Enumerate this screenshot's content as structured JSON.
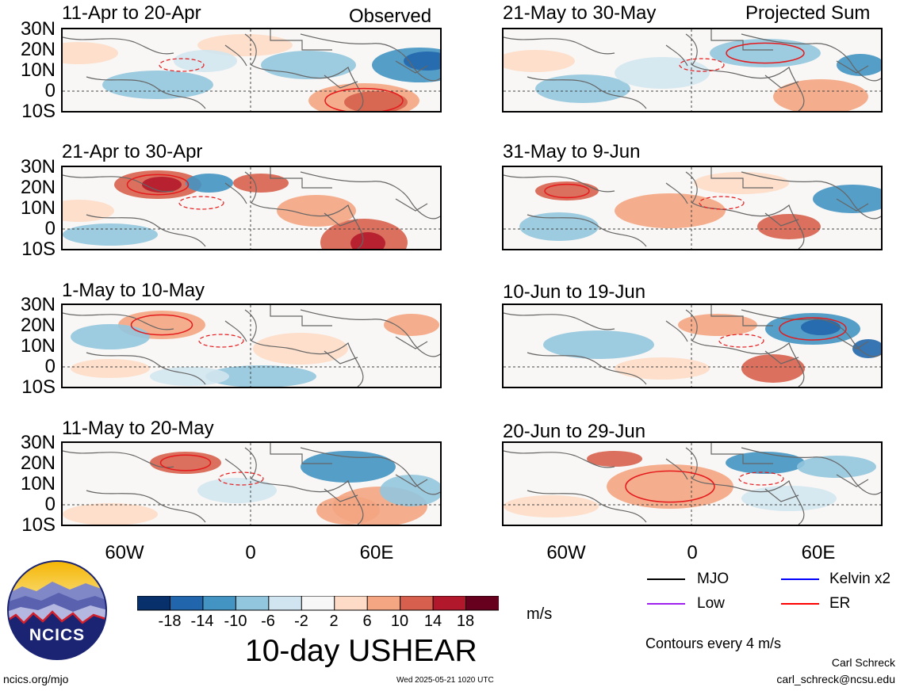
{
  "left_column_label": "Observed",
  "right_column_label": "Projected Sum",
  "panels": [
    {
      "title": "11-Apr to 20-Apr",
      "seed": 1
    },
    {
      "title": "21-Apr to 30-Apr",
      "seed": 2
    },
    {
      "title": "1-May to 10-May",
      "seed": 3
    },
    {
      "title": "11-May to 20-May",
      "seed": 4
    },
    {
      "title": "21-May to 30-May",
      "seed": 5
    },
    {
      "title": "31-May to 9-Jun",
      "seed": 6
    },
    {
      "title": "10-Jun to 19-Jun",
      "seed": 7
    },
    {
      "title": "20-Jun to 29-Jun",
      "seed": 8
    }
  ],
  "lat_labels": [
    "30N",
    "20N",
    "10N",
    "0",
    "10S"
  ],
  "lon_labels": [
    "60W",
    "0",
    "60E"
  ],
  "colorbar": {
    "colors": [
      "#08306b",
      "#2166ac",
      "#4393c3",
      "#92c5de",
      "#d1e5f0",
      "#f7f7f7",
      "#fddbc7",
      "#f4a582",
      "#d6604d",
      "#b2182b",
      "#67001f"
    ],
    "tick_labels": [
      "-18",
      "-14",
      "-10",
      "-6",
      "-2",
      "2",
      "6",
      "10",
      "14",
      "18"
    ],
    "units": "m/s"
  },
  "main_title": "10-day USHEAR",
  "legend": [
    {
      "label": "MJO",
      "color": "#000000"
    },
    {
      "label": "Kelvin x2",
      "color": "#0000ff"
    },
    {
      "label": "Low",
      "color": "#a020f0"
    },
    {
      "label": "ER",
      "color": "#ff0000"
    }
  ],
  "contour_note": "Contours every 4 m/s",
  "logo_text": "NCICS",
  "author": "Carl Schreck",
  "email": "carl_schreck@ncsu.edu",
  "site": "ncics.org/mjo",
  "timestamp": "Wed 2025-05-21 1020 UTC"
}
